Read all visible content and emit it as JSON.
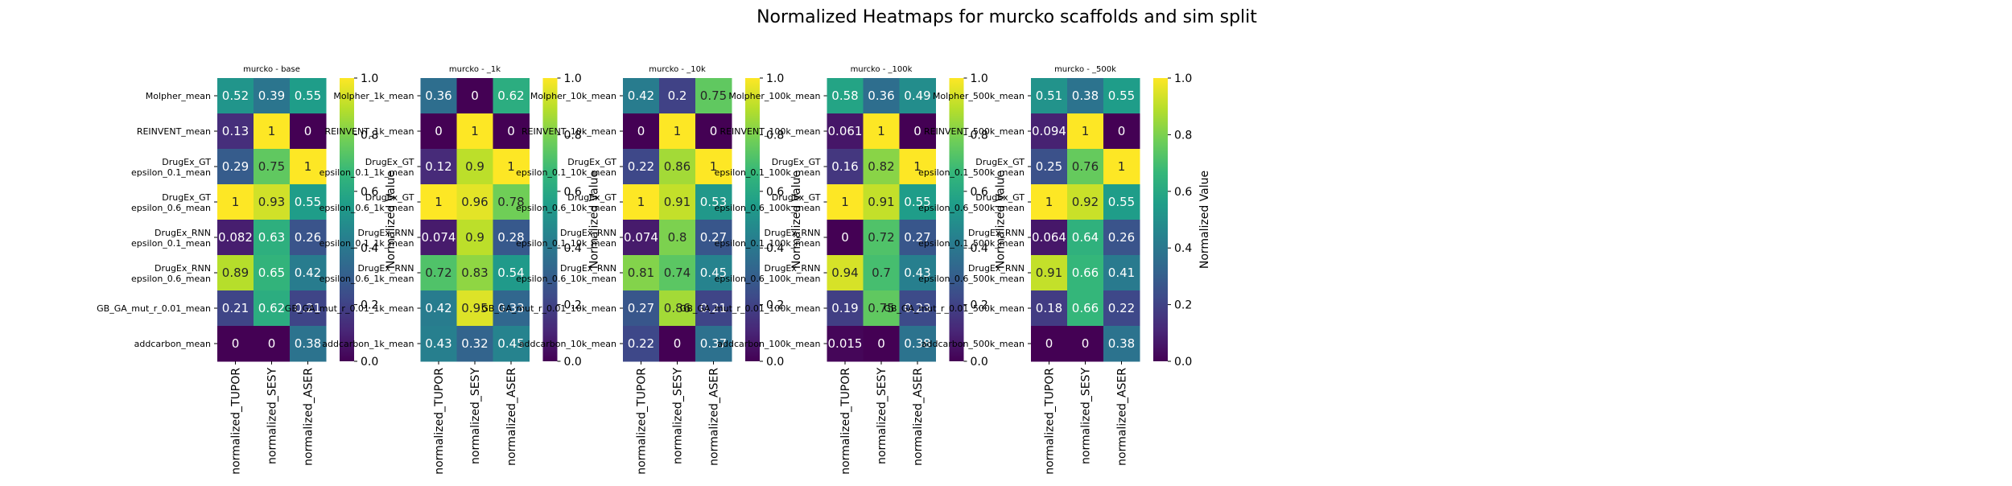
{
  "title": "Normalized Heatmaps for murcko scaffolds and sim split",
  "colorbar": {
    "label": "Normalized Value",
    "ticks": [
      "0.0",
      "0.2",
      "0.4",
      "0.6",
      "0.8",
      "1.0"
    ],
    "colormap": "viridis",
    "stops": [
      "#440154",
      "#482878",
      "#3e4989",
      "#31688e",
      "#26828e",
      "#1f9e89",
      "#35b779",
      "#6ece58",
      "#b5de2b",
      "#fde725"
    ]
  },
  "chart_data": [
    {
      "type": "heatmap",
      "title": "murcko - base",
      "columns": [
        "normalized_TUPOR",
        "normalized_SESY",
        "normalized_ASER"
      ],
      "rows": [
        "Molpher_mean",
        "REINVENT_mean",
        "DrugEx_GT\nepsilon_0.1_mean",
        "DrugEx_GT\nepsilon_0.6_mean",
        "DrugEx_RNN\nepsilon_0.1_mean",
        "DrugEx_RNN\nepsilon_0.6_mean",
        "GB_GA_mut_r_0.01_mean",
        "addcarbon_mean"
      ],
      "values": [
        [
          0.52,
          0.39,
          0.55
        ],
        [
          0.13,
          1,
          0
        ],
        [
          0.29,
          0.75,
          1
        ],
        [
          1,
          0.93,
          0.55
        ],
        [
          0.082,
          0.63,
          0.26
        ],
        [
          0.89,
          0.65,
          0.42
        ],
        [
          0.21,
          0.62,
          0.21
        ],
        [
          0,
          0,
          0.38
        ]
      ],
      "labels": [
        [
          "0.52",
          "0.39",
          "0.55"
        ],
        [
          "0.13",
          "1",
          "0"
        ],
        [
          "0.29",
          "0.75",
          "1"
        ],
        [
          "1",
          "0.93",
          "0.55"
        ],
        [
          "0.082",
          "0.63",
          "0.26"
        ],
        [
          "0.89",
          "0.65",
          "0.42"
        ],
        [
          "0.21",
          "0.62",
          "0.21"
        ],
        [
          "0",
          "0",
          "0.38"
        ]
      ],
      "vmin": 0,
      "vmax": 1
    },
    {
      "type": "heatmap",
      "title": "murcko - _1k",
      "columns": [
        "normalized_TUPOR",
        "normalized_SESY",
        "normalized_ASER"
      ],
      "rows": [
        "Molpher_1k_mean",
        "REINVENT_1k_mean",
        "DrugEx_GT\nepsilon_0.1_1k_mean",
        "DrugEx_GT\nepsilon_0.6_1k_mean",
        "DrugEx_RNN\nepsilon_0.1_1k_mean",
        "DrugEx_RNN\nepsilon_0.6_1k_mean",
        "GB_GA_mut_r_0.01_1k_mean",
        "addcarbon_1k_mean"
      ],
      "values": [
        [
          0.36,
          0,
          0.62
        ],
        [
          0,
          1,
          0
        ],
        [
          0.12,
          0.9,
          1
        ],
        [
          1,
          0.96,
          0.78
        ],
        [
          0.074,
          0.9,
          0.28
        ],
        [
          0.72,
          0.83,
          0.54
        ],
        [
          0.42,
          0.95,
          0.33
        ],
        [
          0.43,
          0.32,
          0.45
        ]
      ],
      "labels": [
        [
          "0.36",
          "0",
          "0.62"
        ],
        [
          "0",
          "1",
          "0"
        ],
        [
          "0.12",
          "0.9",
          "1"
        ],
        [
          "1",
          "0.96",
          "0.78"
        ],
        [
          "0.074",
          "0.9",
          "0.28"
        ],
        [
          "0.72",
          "0.83",
          "0.54"
        ],
        [
          "0.42",
          "0.95",
          "0.33"
        ],
        [
          "0.43",
          "0.32",
          "0.45"
        ]
      ],
      "vmin": 0,
      "vmax": 1
    },
    {
      "type": "heatmap",
      "title": "murcko - _10k",
      "columns": [
        "normalized_TUPOR",
        "normalized_SESY",
        "normalized_ASER"
      ],
      "rows": [
        "Molpher_10k_mean",
        "REINVENT_10k_mean",
        "DrugEx_GT\nepsilon_0.1_10k_mean",
        "DrugEx_GT\nepsilon_0.6_10k_mean",
        "DrugEx_RNN\nepsilon_0.1_10k_mean",
        "DrugEx_RNN\nepsilon_0.6_10k_mean",
        "GB_GA_mut_r_0.01_10k_mean",
        "addcarbon_10k_mean"
      ],
      "values": [
        [
          0.42,
          0.2,
          0.75
        ],
        [
          0,
          1,
          0
        ],
        [
          0.22,
          0.86,
          1
        ],
        [
          1,
          0.91,
          0.53
        ],
        [
          0.074,
          0.8,
          0.27
        ],
        [
          0.81,
          0.74,
          0.45
        ],
        [
          0.27,
          0.86,
          0.21
        ],
        [
          0.22,
          0,
          0.37
        ]
      ],
      "labels": [
        [
          "0.42",
          "0.2",
          "0.75"
        ],
        [
          "0",
          "1",
          "0"
        ],
        [
          "0.22",
          "0.86",
          "1"
        ],
        [
          "1",
          "0.91",
          "0.53"
        ],
        [
          "0.074",
          "0.8",
          "0.27"
        ],
        [
          "0.81",
          "0.74",
          "0.45"
        ],
        [
          "0.27",
          "0.86",
          "0.21"
        ],
        [
          "0.22",
          "0",
          "0.37"
        ]
      ],
      "vmin": 0,
      "vmax": 1
    },
    {
      "type": "heatmap",
      "title": "murcko - _100k",
      "columns": [
        "normalized_TUPOR",
        "normalized_SESY",
        "normalized_ASER"
      ],
      "rows": [
        "Molpher_100k_mean",
        "REINVENT_100k_mean",
        "DrugEx_GT\nepsilon_0.1_100k_mean",
        "DrugEx_GT\nepsilon_0.6_100k_mean",
        "DrugEx_RNN\nepsilon_0.1_100k_mean",
        "DrugEx_RNN\nepsilon_0.6_100k_mean",
        "GB_GA_mut_r_0.01_100k_mean",
        "addcarbon_100k_mean"
      ],
      "values": [
        [
          0.58,
          0.36,
          0.49
        ],
        [
          0.061,
          1,
          0
        ],
        [
          0.16,
          0.82,
          1
        ],
        [
          1,
          0.91,
          0.55
        ],
        [
          0,
          0.72,
          0.27
        ],
        [
          0.94,
          0.7,
          0.43
        ],
        [
          0.19,
          0.75,
          0.23
        ],
        [
          0.015,
          0,
          0.38
        ]
      ],
      "labels": [
        [
          "0.58",
          "0.36",
          "0.49"
        ],
        [
          "0.061",
          "1",
          "0"
        ],
        [
          "0.16",
          "0.82",
          "1"
        ],
        [
          "1",
          "0.91",
          "0.55"
        ],
        [
          "0",
          "0.72",
          "0.27"
        ],
        [
          "0.94",
          "0.7",
          "0.43"
        ],
        [
          "0.19",
          "0.75",
          "0.23"
        ],
        [
          "0.015",
          "0",
          "0.38"
        ]
      ],
      "vmin": 0,
      "vmax": 1
    },
    {
      "type": "heatmap",
      "title": "murcko - _500k",
      "columns": [
        "normalized_TUPOR",
        "normalized_SESY",
        "normalized_ASER"
      ],
      "rows": [
        "Molpher_500k_mean",
        "REINVENT_500k_mean",
        "DrugEx_GT\nepsilon_0.1_500k_mean",
        "DrugEx_GT\nepsilon_0.6_500k_mean",
        "DrugEx_RNN\nepsilon_0.1_500k_mean",
        "DrugEx_RNN\nepsilon_0.6_500k_mean",
        "GB_GA_mut_r_0.01_500k_mean",
        "addcarbon_500k_mean"
      ],
      "values": [
        [
          0.51,
          0.38,
          0.55
        ],
        [
          0.094,
          1,
          0
        ],
        [
          0.25,
          0.76,
          1
        ],
        [
          1,
          0.92,
          0.55
        ],
        [
          0.064,
          0.64,
          0.26
        ],
        [
          0.91,
          0.66,
          0.41
        ],
        [
          0.18,
          0.66,
          0.22
        ],
        [
          0,
          0,
          0.38
        ]
      ],
      "labels": [
        [
          "0.51",
          "0.38",
          "0.55"
        ],
        [
          "0.094",
          "1",
          "0"
        ],
        [
          "0.25",
          "0.76",
          "1"
        ],
        [
          "1",
          "0.92",
          "0.55"
        ],
        [
          "0.064",
          "0.64",
          "0.26"
        ],
        [
          "0.91",
          "0.66",
          "0.41"
        ],
        [
          "0.18",
          "0.66",
          "0.22"
        ],
        [
          "0",
          "0",
          "0.38"
        ]
      ],
      "vmin": 0,
      "vmax": 1
    }
  ]
}
